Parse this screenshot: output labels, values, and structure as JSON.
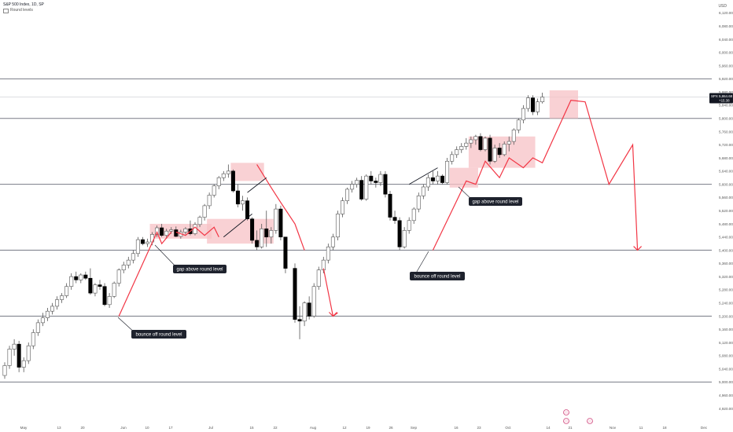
{
  "header": {
    "symbol_title": "S&P 500 Index, 1D, SP",
    "indicator_label": "Round levels",
    "currency": "USD"
  },
  "price_axis": {
    "ticks": [
      "6,120.00",
      "6,080.00",
      "6,040.00",
      "6,000.00",
      "5,960.00",
      "5,920.00",
      "5,880.00",
      "5,840.00",
      "5,800.00",
      "5,760.00",
      "5,720.00",
      "5,680.00",
      "5,640.00",
      "5,600.00",
      "5,560.00",
      "5,520.00",
      "5,480.00",
      "5,440.00",
      "5,400.00",
      "5,360.00",
      "5,320.00",
      "5,280.00",
      "5,240.00",
      "5,200.00",
      "5,160.00",
      "5,120.00",
      "5,080.00",
      "5,040.00",
      "5,000.00",
      "4,960.00",
      "4,920.00"
    ],
    "last_price_tag": {
      "symbol": "SPX",
      "price": "5,864.68",
      "change": "+15.38"
    }
  },
  "time_axis": {
    "labels": [
      "May",
      "13",
      "20",
      "Jun",
      "10",
      "17",
      "Jul",
      "15",
      "22",
      "Aug",
      "12",
      "19",
      "26",
      "Sep",
      "16",
      "23",
      "Oct",
      "14",
      "21",
      "Nov",
      "11",
      "18",
      "Dec"
    ]
  },
  "annotations": [
    {
      "text": "bounce off round level"
    },
    {
      "text": "gap above round level"
    },
    {
      "text": "bounce off round level"
    },
    {
      "text": "gap above round level"
    }
  ],
  "colors": {
    "up_candle_fill": "#ffffff",
    "down_candle_fill": "#000000",
    "candle_outline": "#555555",
    "round_level_line": "#787b86",
    "projection_line": "#f23645",
    "zone_fill": "#f7c1c6",
    "annotation_bg": "#1e222d",
    "annotation_text": "#ffffff"
  },
  "chart_data": {
    "type": "candlestick",
    "title": "S&P 500 Index, 1D, SP",
    "ylim": [
      4920,
      6140
    ],
    "round_levels": [
      5000,
      5200,
      5400,
      5600,
      5800,
      5920
    ],
    "last_price": 5864.68,
    "candles": [
      {
        "o": 5020,
        "h": 5060,
        "l": 5010,
        "c": 5050
      },
      {
        "o": 5050,
        "h": 5110,
        "l": 5040,
        "c": 5100
      },
      {
        "o": 5100,
        "h": 5130,
        "l": 5080,
        "c": 5115
      },
      {
        "o": 5115,
        "h": 5125,
        "l": 5030,
        "c": 5045
      },
      {
        "o": 5045,
        "h": 5075,
        "l": 5030,
        "c": 5065
      },
      {
        "o": 5065,
        "h": 5120,
        "l": 5055,
        "c": 5110
      },
      {
        "o": 5110,
        "h": 5160,
        "l": 5100,
        "c": 5150
      },
      {
        "o": 5150,
        "h": 5190,
        "l": 5140,
        "c": 5180
      },
      {
        "o": 5180,
        "h": 5210,
        "l": 5170,
        "c": 5195
      },
      {
        "o": 5195,
        "h": 5225,
        "l": 5185,
        "c": 5215
      },
      {
        "o": 5215,
        "h": 5240,
        "l": 5205,
        "c": 5230
      },
      {
        "o": 5230,
        "h": 5260,
        "l": 5220,
        "c": 5250
      },
      {
        "o": 5250,
        "h": 5270,
        "l": 5240,
        "c": 5262
      },
      {
        "o": 5262,
        "h": 5300,
        "l": 5255,
        "c": 5290
      },
      {
        "o": 5290,
        "h": 5330,
        "l": 5280,
        "c": 5320
      },
      {
        "o": 5320,
        "h": 5335,
        "l": 5300,
        "c": 5310
      },
      {
        "o": 5310,
        "h": 5330,
        "l": 5300,
        "c": 5325
      },
      {
        "o": 5325,
        "h": 5335,
        "l": 5310,
        "c": 5315
      },
      {
        "o": 5315,
        "h": 5345,
        "l": 5265,
        "c": 5270
      },
      {
        "o": 5270,
        "h": 5300,
        "l": 5260,
        "c": 5295
      },
      {
        "o": 5295,
        "h": 5310,
        "l": 5280,
        "c": 5290
      },
      {
        "o": 5290,
        "h": 5300,
        "l": 5230,
        "c": 5235
      },
      {
        "o": 5235,
        "h": 5270,
        "l": 5225,
        "c": 5260
      },
      {
        "o": 5260,
        "h": 5305,
        "l": 5255,
        "c": 5300
      },
      {
        "o": 5300,
        "h": 5345,
        "l": 5290,
        "c": 5340
      },
      {
        "o": 5340,
        "h": 5365,
        "l": 5330,
        "c": 5355
      },
      {
        "o": 5355,
        "h": 5380,
        "l": 5345,
        "c": 5370
      },
      {
        "o": 5370,
        "h": 5400,
        "l": 5360,
        "c": 5390
      },
      {
        "o": 5390,
        "h": 5440,
        "l": 5380,
        "c": 5432
      },
      {
        "o": 5432,
        "h": 5440,
        "l": 5415,
        "c": 5420
      },
      {
        "o": 5420,
        "h": 5435,
        "l": 5410,
        "c": 5425
      },
      {
        "o": 5425,
        "h": 5455,
        "l": 5415,
        "c": 5448
      },
      {
        "o": 5448,
        "h": 5475,
        "l": 5440,
        "c": 5468
      },
      {
        "o": 5468,
        "h": 5480,
        "l": 5440,
        "c": 5445
      },
      {
        "o": 5445,
        "h": 5465,
        "l": 5435,
        "c": 5458
      },
      {
        "o": 5458,
        "h": 5470,
        "l": 5450,
        "c": 5462
      },
      {
        "o": 5462,
        "h": 5472,
        "l": 5440,
        "c": 5442
      },
      {
        "o": 5442,
        "h": 5462,
        "l": 5435,
        "c": 5455
      },
      {
        "o": 5455,
        "h": 5470,
        "l": 5448,
        "c": 5465
      },
      {
        "o": 5465,
        "h": 5490,
        "l": 5445,
        "c": 5450
      },
      {
        "o": 5450,
        "h": 5485,
        "l": 5445,
        "c": 5478
      },
      {
        "o": 5478,
        "h": 5505,
        "l": 5470,
        "c": 5500
      },
      {
        "o": 5500,
        "h": 5540,
        "l": 5490,
        "c": 5535
      },
      {
        "o": 5535,
        "h": 5575,
        "l": 5525,
        "c": 5567
      },
      {
        "o": 5567,
        "h": 5600,
        "l": 5560,
        "c": 5595
      },
      {
        "o": 5595,
        "h": 5625,
        "l": 5585,
        "c": 5620
      },
      {
        "o": 5620,
        "h": 5640,
        "l": 5610,
        "c": 5632
      },
      {
        "o": 5632,
        "h": 5660,
        "l": 5620,
        "c": 5640
      },
      {
        "o": 5640,
        "h": 5645,
        "l": 5575,
        "c": 5580
      },
      {
        "o": 5580,
        "h": 5600,
        "l": 5530,
        "c": 5540
      },
      {
        "o": 5540,
        "h": 5565,
        "l": 5520,
        "c": 5550
      },
      {
        "o": 5550,
        "h": 5560,
        "l": 5490,
        "c": 5495
      },
      {
        "o": 5495,
        "h": 5500,
        "l": 5420,
        "c": 5430
      },
      {
        "o": 5430,
        "h": 5460,
        "l": 5400,
        "c": 5410
      },
      {
        "o": 5410,
        "h": 5480,
        "l": 5405,
        "c": 5465
      },
      {
        "o": 5465,
        "h": 5520,
        "l": 5410,
        "c": 5440
      },
      {
        "o": 5440,
        "h": 5470,
        "l": 5420,
        "c": 5460
      },
      {
        "o": 5460,
        "h": 5540,
        "l": 5450,
        "c": 5525
      },
      {
        "o": 5525,
        "h": 5535,
        "l": 5430,
        "c": 5440
      },
      {
        "o": 5440,
        "h": 5440,
        "l": 5330,
        "c": 5345
      },
      {
        "o": 5345,
        "h": 5360,
        "l": 5180,
        "c": 5190
      },
      {
        "o": 5190,
        "h": 5230,
        "l": 5130,
        "c": 5185
      },
      {
        "o": 5185,
        "h": 5245,
        "l": 5170,
        "c": 5240
      },
      {
        "o": 5240,
        "h": 5260,
        "l": 5190,
        "c": 5200
      },
      {
        "o": 5200,
        "h": 5300,
        "l": 5195,
        "c": 5290
      },
      {
        "o": 5290,
        "h": 5350,
        "l": 5280,
        "c": 5340
      },
      {
        "o": 5340,
        "h": 5380,
        "l": 5330,
        "c": 5370
      },
      {
        "o": 5370,
        "h": 5420,
        "l": 5360,
        "c": 5410
      },
      {
        "o": 5410,
        "h": 5450,
        "l": 5400,
        "c": 5440
      },
      {
        "o": 5440,
        "h": 5520,
        "l": 5430,
        "c": 5510
      },
      {
        "o": 5510,
        "h": 5560,
        "l": 5500,
        "c": 5550
      },
      {
        "o": 5550,
        "h": 5590,
        "l": 5540,
        "c": 5585
      },
      {
        "o": 5585,
        "h": 5610,
        "l": 5575,
        "c": 5600
      },
      {
        "o": 5600,
        "h": 5620,
        "l": 5590,
        "c": 5612
      },
      {
        "o": 5612,
        "h": 5625,
        "l": 5550,
        "c": 5555
      },
      {
        "o": 5555,
        "h": 5630,
        "l": 5550,
        "c": 5625
      },
      {
        "o": 5625,
        "h": 5640,
        "l": 5600,
        "c": 5610
      },
      {
        "o": 5610,
        "h": 5620,
        "l": 5590,
        "c": 5605
      },
      {
        "o": 5605,
        "h": 5640,
        "l": 5595,
        "c": 5630
      },
      {
        "o": 5630,
        "h": 5640,
        "l": 5560,
        "c": 5570
      },
      {
        "o": 5570,
        "h": 5580,
        "l": 5490,
        "c": 5500
      },
      {
        "o": 5500,
        "h": 5520,
        "l": 5480,
        "c": 5490
      },
      {
        "o": 5490,
        "h": 5500,
        "l": 5400,
        "c": 5410
      },
      {
        "o": 5410,
        "h": 5470,
        "l": 5405,
        "c": 5460
      },
      {
        "o": 5460,
        "h": 5500,
        "l": 5450,
        "c": 5490
      },
      {
        "o": 5490,
        "h": 5530,
        "l": 5480,
        "c": 5525
      },
      {
        "o": 5525,
        "h": 5575,
        "l": 5515,
        "c": 5565
      },
      {
        "o": 5565,
        "h": 5600,
        "l": 5555,
        "c": 5592
      },
      {
        "o": 5592,
        "h": 5630,
        "l": 5580,
        "c": 5620
      },
      {
        "o": 5620,
        "h": 5640,
        "l": 5600,
        "c": 5610
      },
      {
        "o": 5610,
        "h": 5640,
        "l": 5600,
        "c": 5625
      },
      {
        "o": 5625,
        "h": 5630,
        "l": 5600,
        "c": 5605
      },
      {
        "o": 5605,
        "h": 5680,
        "l": 5600,
        "c": 5670
      },
      {
        "o": 5670,
        "h": 5700,
        "l": 5660,
        "c": 5690
      },
      {
        "o": 5690,
        "h": 5715,
        "l": 5680,
        "c": 5705
      },
      {
        "o": 5705,
        "h": 5725,
        "l": 5695,
        "c": 5715
      },
      {
        "o": 5715,
        "h": 5740,
        "l": 5705,
        "c": 5725
      },
      {
        "o": 5725,
        "h": 5745,
        "l": 5710,
        "c": 5735
      },
      {
        "o": 5735,
        "h": 5750,
        "l": 5720,
        "c": 5745
      },
      {
        "o": 5745,
        "h": 5755,
        "l": 5700,
        "c": 5705
      },
      {
        "o": 5705,
        "h": 5745,
        "l": 5700,
        "c": 5740
      },
      {
        "o": 5740,
        "h": 5750,
        "l": 5660,
        "c": 5670
      },
      {
        "o": 5670,
        "h": 5720,
        "l": 5665,
        "c": 5710
      },
      {
        "o": 5710,
        "h": 5725,
        "l": 5680,
        "c": 5690
      },
      {
        "o": 5690,
        "h": 5730,
        "l": 5685,
        "c": 5722
      },
      {
        "o": 5722,
        "h": 5745,
        "l": 5700,
        "c": 5730
      },
      {
        "o": 5730,
        "h": 5770,
        "l": 5720,
        "c": 5765
      },
      {
        "o": 5765,
        "h": 5800,
        "l": 5755,
        "c": 5795
      },
      {
        "o": 5795,
        "h": 5840,
        "l": 5785,
        "c": 5830
      },
      {
        "o": 5830,
        "h": 5870,
        "l": 5820,
        "c": 5862
      },
      {
        "o": 5862,
        "h": 5870,
        "l": 5810,
        "c": 5820
      },
      {
        "o": 5820,
        "h": 5860,
        "l": 5810,
        "c": 5850
      },
      {
        "o": 5850,
        "h": 5878,
        "l": 5845,
        "c": 5864.68
      }
    ]
  }
}
